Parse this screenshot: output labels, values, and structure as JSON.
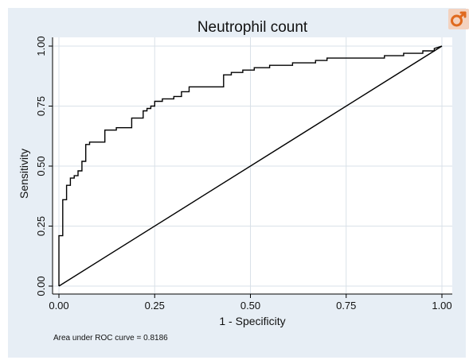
{
  "chart_data": {
    "type": "line",
    "title": "Neutrophil count",
    "xlabel": "1 - Specificity",
    "ylabel": "Sensitivity",
    "xlim": [
      0,
      1
    ],
    "ylim": [
      0,
      1
    ],
    "x_ticks": [
      "0.00",
      "0.25",
      "0.50",
      "0.75",
      "1.00"
    ],
    "y_ticks": [
      "0.00",
      "0.25",
      "0.50",
      "0.75",
      "1.00"
    ],
    "grid": true,
    "note": "Area under ROC curve = 0.8186",
    "series": [
      {
        "x": [
          0,
          0,
          0.01,
          0.01,
          0.02,
          0.02,
          0.03,
          0.03,
          0.04,
          0.04,
          0.05,
          0.05,
          0.06,
          0.06,
          0.07,
          0.07,
          0.08,
          0.08,
          0.09,
          0.09,
          0.12,
          0.12,
          0.15,
          0.15,
          0.19,
          0.19,
          0.22,
          0.22,
          0.23,
          0.23,
          0.24,
          0.24,
          0.25,
          0.25,
          0.27,
          0.27,
          0.28,
          0.28,
          0.3,
          0.3,
          0.32,
          0.32,
          0.34,
          0.34,
          0.35,
          0.35,
          0.37,
          0.37,
          0.38,
          0.38,
          0.43,
          0.43,
          0.45,
          0.45,
          0.48,
          0.48,
          0.51,
          0.51,
          0.55,
          0.55,
          0.61,
          0.61,
          0.67,
          0.67,
          0.7,
          0.7,
          0.77,
          0.77,
          0.85,
          0.85,
          0.9,
          0.9,
          0.95,
          0.95,
          0.98,
          0.98,
          1
        ],
        "y": [
          0,
          0.21,
          0.21,
          0.36,
          0.36,
          0.42,
          0.42,
          0.45,
          0.45,
          0.46,
          0.46,
          0.48,
          0.48,
          0.52,
          0.52,
          0.59,
          0.59,
          0.6,
          0.6,
          0.6,
          0.6,
          0.65,
          0.65,
          0.66,
          0.66,
          0.7,
          0.7,
          0.73,
          0.73,
          0.74,
          0.74,
          0.75,
          0.75,
          0.77,
          0.77,
          0.78,
          0.78,
          0.78,
          0.78,
          0.79,
          0.79,
          0.81,
          0.81,
          0.83,
          0.83,
          0.83,
          0.83,
          0.83,
          0.83,
          0.83,
          0.83,
          0.88,
          0.88,
          0.89,
          0.89,
          0.9,
          0.9,
          0.91,
          0.91,
          0.92,
          0.92,
          0.93,
          0.93,
          0.94,
          0.94,
          0.95,
          0.95,
          0.95,
          0.95,
          0.96,
          0.96,
          0.97,
          0.97,
          0.98,
          0.98,
          0.99,
          1
        ]
      },
      {
        "x": [
          0,
          1
        ],
        "y": [
          0,
          1
        ]
      }
    ]
  },
  "icon": "male-symbol-icon",
  "colors": {
    "background": "#e7eef5",
    "plot_area": "#ffffff",
    "grid": "#d9e1e8",
    "line": "#000000",
    "icon_bg": "#f3d2bf",
    "icon_fg": "#e06a1e"
  }
}
